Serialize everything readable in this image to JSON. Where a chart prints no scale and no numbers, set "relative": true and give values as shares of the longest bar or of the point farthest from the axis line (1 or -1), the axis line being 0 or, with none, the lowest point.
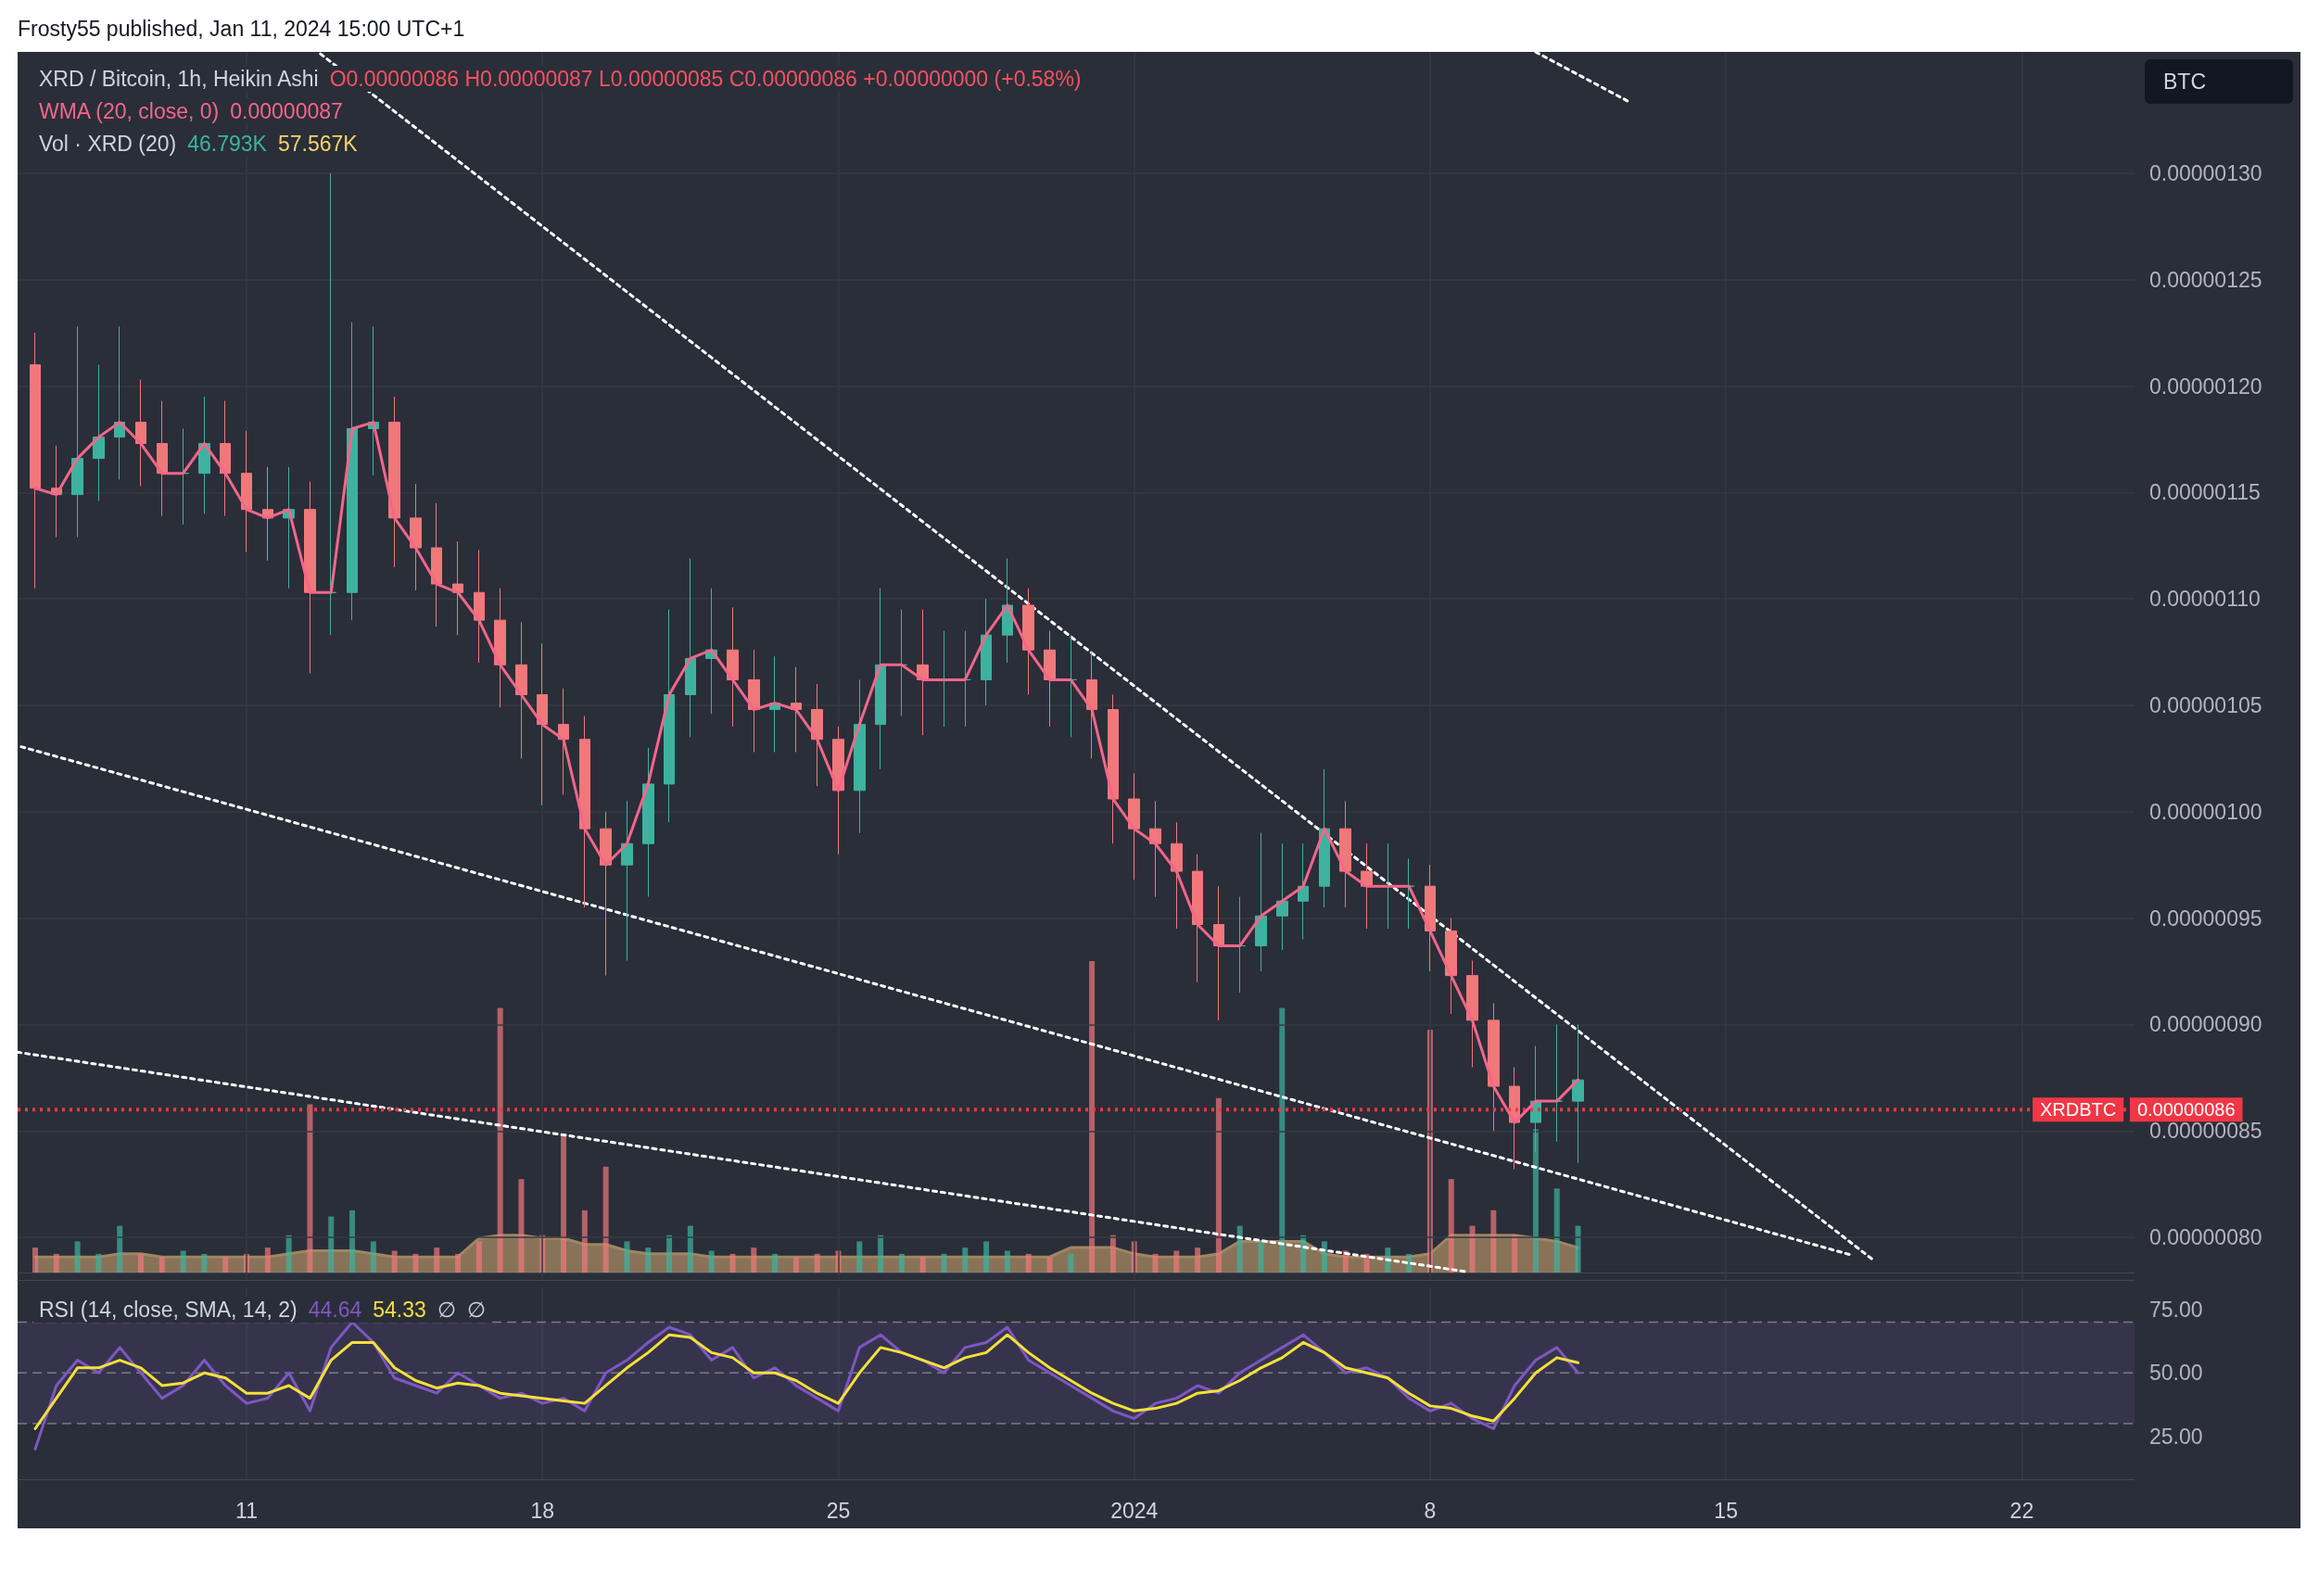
{
  "chart_data": [
    {
      "type": "candlestick",
      "title": "XRD / Bitcoin, 1h, Heikin Ashi",
      "ylabel": "BTC",
      "annotations": [
        "O0.00000086 H0.00000087 L0.00000085 C0.00000086 +0.00000000 (+0.58%)",
        "0.00000087",
        "Frosty55 published, Jan 11, 2024 15:00 UTC+1",
        "0.00000086"
      ],
      "x": [
        "2023-12-06T00:00",
        "2023-12-06T12:00",
        "2023-12-07T00:00",
        "2023-12-07T12:00",
        "2023-12-08T00:00",
        "2023-12-08T12:00",
        "2023-12-09T00:00",
        "2023-12-09T12:00",
        "2023-12-10T00:00",
        "2023-12-10T12:00",
        "2023-12-11T00:00",
        "2023-12-11T12:00",
        "2023-12-12T00:00",
        "2023-12-12T12:00",
        "2023-12-13T00:00",
        "2023-12-13T12:00",
        "2023-12-14T00:00",
        "2023-12-14T12:00",
        "2023-12-15T00:00",
        "2023-12-15T12:00",
        "2023-12-16T00:00",
        "2023-12-16T12:00",
        "2023-12-17T00:00",
        "2023-12-17T12:00",
        "2023-12-18T00:00",
        "2023-12-18T12:00",
        "2023-12-19T00:00",
        "2023-12-19T12:00",
        "2023-12-20T00:00",
        "2023-12-20T12:00",
        "2023-12-21T00:00",
        "2023-12-21T12:00",
        "2023-12-22T00:00",
        "2023-12-22T12:00",
        "2023-12-23T00:00",
        "2023-12-23T12:00",
        "2023-12-24T00:00",
        "2023-12-24T12:00",
        "2023-12-25T00:00",
        "2023-12-25T12:00",
        "2023-12-26T00:00",
        "2023-12-26T12:00",
        "2023-12-27T00:00",
        "2023-12-27T12:00",
        "2023-12-28T00:00",
        "2023-12-28T12:00",
        "2023-12-29T00:00",
        "2023-12-29T12:00",
        "2023-12-30T00:00",
        "2023-12-30T12:00",
        "2023-12-31T00:00",
        "2023-12-31T12:00",
        "2024-01-01T00:00",
        "2024-01-01T12:00",
        "2024-01-02T00:00",
        "2024-01-02T12:00",
        "2024-01-03T00:00",
        "2024-01-03T12:00",
        "2024-01-04T00:00",
        "2024-01-04T12:00",
        "2024-01-05T00:00",
        "2024-01-05T12:00",
        "2024-01-06T00:00",
        "2024-01-06T12:00",
        "2024-01-07T00:00",
        "2024-01-07T12:00",
        "2024-01-08T00:00",
        "2024-01-08T12:00",
        "2024-01-09T00:00",
        "2024-01-09T12:00",
        "2024-01-10T00:00",
        "2024-01-10T12:00",
        "2024-01-11T00:00",
        "2024-01-11T12:00"
      ],
      "ohlc": [
        [
          1.21e-06,
          1.225e-06,
          1.105e-06,
          1.152e-06
        ],
        [
          1.152e-06,
          1.172e-06,
          1.129e-06,
          1.149e-06
        ],
        [
          1.149e-06,
          1.228e-06,
          1.129e-06,
          1.166e-06
        ],
        [
          1.166e-06,
          1.21e-06,
          1.146e-06,
          1.176e-06
        ],
        [
          1.176e-06,
          1.228e-06,
          1.156e-06,
          1.183e-06
        ],
        [
          1.183e-06,
          1.203e-06,
          1.153e-06,
          1.173e-06
        ],
        [
          1.173e-06,
          1.193e-06,
          1.139e-06,
          1.159e-06
        ],
        [
          1.159e-06,
          1.18e-06,
          1.135e-06,
          1.159e-06
        ],
        [
          1.159e-06,
          1.195e-06,
          1.14e-06,
          1.173e-06
        ],
        [
          1.173e-06,
          1.193e-06,
          1.139e-06,
          1.159e-06
        ],
        [
          1.159e-06,
          1.179e-06,
          1.122e-06,
          1.142e-06
        ],
        [
          1.142e-06,
          1.162e-06,
          1.118e-06,
          1.138e-06
        ],
        [
          1.138e-06,
          1.162e-06,
          1.105e-06,
          1.142e-06
        ],
        [
          1.142e-06,
          1.155e-06,
          1.065e-06,
          1.103e-06
        ],
        [
          1.103e-06,
          1.3e-06,
          1.083e-06,
          1.103e-06
        ],
        [
          1.103e-06,
          1.23e-06,
          1.09e-06,
          1.18e-06
        ],
        [
          1.18e-06,
          1.228e-06,
          1.158e-06,
          1.183e-06
        ],
        [
          1.183e-06,
          1.195e-06,
          1.115e-06,
          1.138e-06
        ],
        [
          1.138e-06,
          1.154e-06,
          1.104e-06,
          1.124e-06
        ],
        [
          1.124e-06,
          1.145e-06,
          1.087e-06,
          1.107e-06
        ],
        [
          1.107e-06,
          1.127e-06,
          1.083e-06,
          1.103e-06
        ],
        [
          1.103e-06,
          1.123e-06,
          1.07e-06,
          1.09e-06
        ],
        [
          1.09e-06,
          1.105e-06,
          1.049e-06,
          1.069e-06
        ],
        [
          1.069e-06,
          1.089e-06,
          1.025e-06,
          1.055e-06
        ],
        [
          1.055e-06,
          1.079e-06,
          1.003e-06,
          1.041e-06
        ],
        [
          1.041e-06,
          1.058e-06,
          1.008e-06,
          1.034e-06
        ],
        [
          1.034e-06,
          1.045e-06,
          9.55e-07,
          9.92e-07
        ],
        [
          9.92e-07,
          1e-06,
          9.23e-07,
          9.75e-07
        ],
        [
          9.75e-07,
          1.005e-06,
          9.3e-07,
          9.85e-07
        ],
        [
          9.85e-07,
          1.03e-06,
          9.6e-07,
          1.013e-06
        ],
        [
          1.013e-06,
          1.095e-06,
          9.95e-07,
          1.055e-06
        ],
        [
          1.055e-06,
          1.119e-06,
          1.035e-06,
          1.072e-06
        ],
        [
          1.072e-06,
          1.105e-06,
          1.046e-06,
          1.076e-06
        ],
        [
          1.076e-06,
          1.096e-06,
          1.04e-06,
          1.062e-06
        ],
        [
          1.062e-06,
          1.076e-06,
          1.028e-06,
          1.048e-06
        ],
        [
          1.048e-06,
          1.073e-06,
          1.028e-06,
          1.051e-06
        ],
        [
          1.051e-06,
          1.068e-06,
          1.028e-06,
          1.048e-06
        ],
        [
          1.048e-06,
          1.06e-06,
          1.012e-06,
          1.034e-06
        ],
        [
          1.034e-06,
          1.04e-06,
          9.8e-07,
          1.01e-06
        ],
        [
          1.01e-06,
          1.062e-06,
          9.9e-07,
          1.041e-06
        ],
        [
          1.041e-06,
          1.105e-06,
          1.02e-06,
          1.069e-06
        ],
        [
          1.069e-06,
          1.095e-06,
          1.045e-06,
          1.069e-06
        ],
        [
          1.069e-06,
          1.095e-06,
          1.036e-06,
          1.062e-06
        ],
        [
          1.062e-06,
          1.085e-06,
          1.04e-06,
          1.062e-06
        ],
        [
          1.062e-06,
          1.085e-06,
          1.04e-06,
          1.062e-06
        ],
        [
          1.062e-06,
          1.1e-06,
          1.05e-06,
          1.083e-06
        ],
        [
          1.083e-06,
          1.119e-06,
          1.07e-06,
          1.097e-06
        ],
        [
          1.097e-06,
          1.105e-06,
          1.055e-06,
          1.076e-06
        ],
        [
          1.076e-06,
          1.085e-06,
          1.04e-06,
          1.062e-06
        ],
        [
          1.062e-06,
          1.083e-06,
          1.035e-06,
          1.062e-06
        ],
        [
          1.062e-06,
          1.075e-06,
          1.025e-06,
          1.048e-06
        ],
        [
          1.048e-06,
          1.055e-06,
          9.85e-07,
          1.006e-06
        ],
        [
          1.006e-06,
          1.018e-06,
          9.68e-07,
          9.92e-07
        ],
        [
          9.92e-07,
          1.005e-06,
          9.6e-07,
          9.85e-07
        ],
        [
          9.85e-07,
          9.95e-07,
          9.45e-07,
          9.72e-07
        ],
        [
          9.72e-07,
          9.8e-07,
          9.2e-07,
          9.47e-07
        ],
        [
          9.47e-07,
          9.65e-07,
          9.02e-07,
          9.37e-07
        ],
        [
          9.37e-07,
          9.6e-07,
          9.15e-07,
          9.37e-07
        ],
        [
          9.37e-07,
          9.9e-07,
          9.25e-07,
          9.51e-07
        ],
        [
          9.51e-07,
          9.85e-07,
          9.35e-07,
          9.58e-07
        ],
        [
          9.58e-07,
          9.85e-07,
          9.4e-07,
          9.65e-07
        ],
        [
          9.65e-07,
          1.02e-06,
          9.55e-07,
          9.92e-07
        ],
        [
          9.92e-07,
          1.005e-06,
          9.55e-07,
          9.72e-07
        ],
        [
          9.72e-07,
          9.85e-07,
          9.45e-07,
          9.65e-07
        ],
        [
          9.65e-07,
          9.85e-07,
          9.45e-07,
          9.65e-07
        ],
        [
          9.65e-07,
          9.78e-07,
          9.45e-07,
          9.65e-07
        ],
        [
          9.65e-07,
          9.75e-07,
          9.25e-07,
          9.44e-07
        ],
        [
          9.44e-07,
          9.5e-07,
          9.05e-07,
          9.23e-07
        ],
        [
          9.23e-07,
          9.3e-07,
          8.8e-07,
          9.02e-07
        ],
        [
          9.02e-07,
          9.1e-07,
          8.5e-07,
          8.71e-07
        ],
        [
          8.71e-07,
          8.8e-07,
          8.32e-07,
          8.54e-07
        ],
        [
          8.54e-07,
          8.9e-07,
          8.4e-07,
          8.64e-07
        ],
        [
          8.64e-07,
          9e-07,
          8.45e-07,
          8.64e-07
        ],
        [
          8.64e-07,
          9e-07,
          8.35e-07,
          8.74e-07
        ]
      ],
      "colors": [
        "#f1787a",
        "#f1787a",
        "#3db39f",
        "#3db39f",
        "#3db39f",
        "#f1787a",
        "#f1787a",
        "#3db39f",
        "#3db39f",
        "#f1787a",
        "#f1787a",
        "#f1787a",
        "#3db39f",
        "#f1787a",
        "#3db39f",
        "#3db39f",
        "#3db39f",
        "#f1787a",
        "#f1787a",
        "#f1787a",
        "#f1787a",
        "#f1787a",
        "#f1787a",
        "#f1787a",
        "#f1787a",
        "#f1787a",
        "#f1787a",
        "#f1787a",
        "#3db39f",
        "#3db39f",
        "#3db39f",
        "#3db39f",
        "#3db39f",
        "#f1787a",
        "#f1787a",
        "#3db39f",
        "#f1787a",
        "#f1787a",
        "#f1787a",
        "#3db39f",
        "#3db39f",
        "#3db39f",
        "#f1787a",
        "#3db39f",
        "#3db39f",
        "#3db39f",
        "#3db39f",
        "#f1787a",
        "#f1787a",
        "#3db39f",
        "#f1787a",
        "#f1787a",
        "#f1787a",
        "#f1787a",
        "#f1787a",
        "#f1787a",
        "#f1787a",
        "#3db39f",
        "#3db39f",
        "#3db39f",
        "#3db39f",
        "#3db39f",
        "#f1787a",
        "#f1787a",
        "#3db39f",
        "#3db39f",
        "#f1787a",
        "#f1787a",
        "#f1787a",
        "#f1787a",
        "#f1787a",
        "#3db39f",
        "#3db39f",
        "#3db39f"
      ],
      "series": [
        {
          "name": "WMA (20, close, 0)",
          "type": "line",
          "color": "#f7668a",
          "values": [
            1.152e-06,
            1.149e-06,
            1.166e-06,
            1.176e-06,
            1.183e-06,
            1.173e-06,
            1.159e-06,
            1.159e-06,
            1.173e-06,
            1.159e-06,
            1.142e-06,
            1.138e-06,
            1.142e-06,
            1.103e-06,
            1.103e-06,
            1.18e-06,
            1.183e-06,
            1.138e-06,
            1.124e-06,
            1.107e-06,
            1.103e-06,
            1.09e-06,
            1.069e-06,
            1.055e-06,
            1.041e-06,
            1.034e-06,
            9.92e-07,
            9.75e-07,
            9.85e-07,
            1.013e-06,
            1.055e-06,
            1.072e-06,
            1.076e-06,
            1.062e-06,
            1.048e-06,
            1.051e-06,
            1.048e-06,
            1.034e-06,
            1.01e-06,
            1.041e-06,
            1.069e-06,
            1.069e-06,
            1.062e-06,
            1.062e-06,
            1.062e-06,
            1.083e-06,
            1.097e-06,
            1.076e-06,
            1.062e-06,
            1.062e-06,
            1.048e-06,
            1.006e-06,
            9.92e-07,
            9.85e-07,
            9.72e-07,
            9.47e-07,
            9.37e-07,
            9.37e-07,
            9.51e-07,
            9.58e-07,
            9.65e-07,
            9.92e-07,
            9.72e-07,
            9.65e-07,
            9.65e-07,
            9.65e-07,
            9.44e-07,
            9.23e-07,
            9.02e-07,
            8.71e-07,
            8.54e-07,
            8.64e-07,
            8.64e-07,
            8.74e-07
          ]
        },
        {
          "type": "line",
          "color": "#ffffff",
          "line_style": "dotted",
          "x": [
            "2023-12-12T16:30",
            "2024-01-18T10:40"
          ],
          "values": [
            1.357e-06,
            7.9e-07
          ]
        },
        {
          "type": "line",
          "color": "#ffffff",
          "line_style": "dotted",
          "x": [
            "2024-01-10T11:50",
            "2024-01-12T16:00"
          ],
          "values": [
            1.357e-06,
            1.334e-06
          ]
        },
        {
          "type": "line",
          "color": "#ffffff",
          "line_style": "dotted",
          "x": [
            "2023-12-05T14:00",
            "2024-01-17T22:00"
          ],
          "values": [
            1.031e-06,
            7.92e-07
          ]
        },
        {
          "type": "line",
          "color": "#ffffff",
          "line_style": "dotted",
          "x": [
            "2023-12-05T14:00",
            "2024-01-08T19:30"
          ],
          "values": [
            8.87e-07,
            7.84e-07
          ]
        }
      ],
      "xlim": [
        "2023-12-05T14:00",
        "2024-01-24T16:00"
      ],
      "xticks": [
        {
          "value": "2023-12-11",
          "label": null
        },
        {
          "value": "2023-12-18",
          "label": null
        },
        {
          "value": "2023-12-25",
          "label": null
        },
        {
          "value": "2024-01-01",
          "label": null
        },
        {
          "value": "2024-01-08",
          "label": null
        },
        {
          "value": "2024-01-15",
          "label": null
        },
        {
          "value": "2024-01-22",
          "label": null
        }
      ],
      "ylim": [
        7.8e-07,
        1.357e-06
      ],
      "yticks": [
        {
          "value": 8e-07,
          "label": "0.00000080"
        },
        {
          "value": 8.5e-07,
          "label": "0.00000085"
        },
        {
          "value": 9e-07,
          "label": "0.00000090"
        },
        {
          "value": 9.5e-07,
          "label": "0.00000095"
        },
        {
          "value": 1e-06,
          "label": "0.00000100"
        },
        {
          "value": 1.05e-06,
          "label": "0.00000105"
        },
        {
          "value": 1.1e-06,
          "label": "0.00000110"
        },
        {
          "value": 1.15e-06,
          "label": "0.00000115"
        },
        {
          "value": 1.2e-06,
          "label": "0.00000120"
        },
        {
          "value": 1.25e-06,
          "label": "0.00000125"
        },
        {
          "value": 1.3e-06,
          "label": "0.00000130"
        }
      ],
      "ref_lines": [
        {
          "axis": "y",
          "value": 8.6e-07,
          "label": "XRDBTC",
          "color": "#f23645",
          "line_style": "dotted"
        }
      ],
      "grid": true,
      "tick_labels": "y",
      "marker": "none"
    },
    {
      "type": "bar",
      "title": "Vol · XRD (20)",
      "annotations": [
        "46.793K",
        "57.567K"
      ],
      "relative": true,
      "tick_labels": false,
      "x": [
        "2023-12-06T00:00",
        "2023-12-06T12:00",
        "2023-12-07T00:00",
        "2023-12-07T12:00",
        "2023-12-08T00:00",
        "2023-12-08T12:00",
        "2023-12-09T00:00",
        "2023-12-09T12:00",
        "2023-12-10T00:00",
        "2023-12-10T12:00",
        "2023-12-11T00:00",
        "2023-12-11T12:00",
        "2023-12-12T00:00",
        "2023-12-12T12:00",
        "2023-12-13T00:00",
        "2023-12-13T12:00",
        "2023-12-14T00:00",
        "2023-12-14T12:00",
        "2023-12-15T00:00",
        "2023-12-15T12:00",
        "2023-12-16T00:00",
        "2023-12-16T12:00",
        "2023-12-17T00:00",
        "2023-12-17T12:00",
        "2023-12-18T00:00",
        "2023-12-18T12:00",
        "2023-12-19T00:00",
        "2023-12-19T12:00",
        "2023-12-20T00:00",
        "2023-12-20T12:00",
        "2023-12-21T00:00",
        "2023-12-21T12:00",
        "2023-12-22T00:00",
        "2023-12-22T12:00",
        "2023-12-23T00:00",
        "2023-12-23T12:00",
        "2023-12-24T00:00",
        "2023-12-24T12:00",
        "2023-12-25T00:00",
        "2023-12-25T12:00",
        "2023-12-26T00:00",
        "2023-12-26T12:00",
        "2023-12-27T00:00",
        "2023-12-27T12:00",
        "2023-12-28T00:00",
        "2023-12-28T12:00",
        "2023-12-29T00:00",
        "2023-12-29T12:00",
        "2023-12-30T00:00",
        "2023-12-30T12:00",
        "2023-12-31T00:00",
        "2023-12-31T12:00",
        "2024-01-01T00:00",
        "2024-01-01T12:00",
        "2024-01-02T00:00",
        "2024-01-02T12:00",
        "2024-01-03T00:00",
        "2024-01-03T12:00",
        "2024-01-04T00:00",
        "2024-01-04T12:00",
        "2024-01-05T00:00",
        "2024-01-05T12:00",
        "2024-01-06T00:00",
        "2024-01-06T12:00",
        "2024-01-07T00:00",
        "2024-01-07T12:00",
        "2024-01-08T00:00",
        "2024-01-08T12:00",
        "2024-01-09T00:00",
        "2024-01-09T12:00",
        "2024-01-10T00:00",
        "2024-01-10T12:00",
        "2024-01-11T00:00",
        "2024-01-11T12:00"
      ],
      "series": [
        {
          "type": "bar",
          "values": [
            0.08,
            0.06,
            0.1,
            0.06,
            0.15,
            0.06,
            0.05,
            0.07,
            0.06,
            0.05,
            0.06,
            0.08,
            0.12,
            0.54,
            0.18,
            0.2,
            0.1,
            0.07,
            0.06,
            0.08,
            0.06,
            0.1,
            0.85,
            0.3,
            0.12,
            0.44,
            0.2,
            0.34,
            0.1,
            0.08,
            0.12,
            0.15,
            0.07,
            0.06,
            0.08,
            0.06,
            0.05,
            0.06,
            0.07,
            0.1,
            0.12,
            0.06,
            0.05,
            0.06,
            0.08,
            0.1,
            0.07,
            0.06,
            0.05,
            0.06,
            1,
            0.12,
            0.1,
            0.06,
            0.07,
            0.08,
            0.56,
            0.15,
            0.1,
            0.85,
            0.12,
            0.1,
            0.07,
            0.06,
            0.08,
            0.06,
            0.78,
            0.3,
            0.15,
            0.2,
            0.12,
            0.46,
            0.27,
            0.15
          ],
          "colors": [
            "#f1787a",
            "#f1787a",
            "#3db39f",
            "#3db39f",
            "#3db39f",
            "#f1787a",
            "#f1787a",
            "#3db39f",
            "#3db39f",
            "#f1787a",
            "#f1787a",
            "#f1787a",
            "#3db39f",
            "#f1787a",
            "#3db39f",
            "#3db39f",
            "#3db39f",
            "#f1787a",
            "#f1787a",
            "#f1787a",
            "#f1787a",
            "#f1787a",
            "#f1787a",
            "#f1787a",
            "#f1787a",
            "#f1787a",
            "#f1787a",
            "#f1787a",
            "#3db39f",
            "#3db39f",
            "#3db39f",
            "#3db39f",
            "#3db39f",
            "#f1787a",
            "#f1787a",
            "#3db39f",
            "#f1787a",
            "#f1787a",
            "#f1787a",
            "#3db39f",
            "#3db39f",
            "#3db39f",
            "#f1787a",
            "#3db39f",
            "#3db39f",
            "#3db39f",
            "#3db39f",
            "#f1787a",
            "#f1787a",
            "#3db39f",
            "#f1787a",
            "#f1787a",
            "#f1787a",
            "#f1787a",
            "#f1787a",
            "#f1787a",
            "#f1787a",
            "#3db39f",
            "#3db39f",
            "#3db39f",
            "#3db39f",
            "#3db39f",
            "#f1787a",
            "#f1787a",
            "#3db39f",
            "#3db39f",
            "#f1787a",
            "#f1787a",
            "#f1787a",
            "#f1787a",
            "#f1787a",
            "#3db39f",
            "#3db39f",
            "#3db39f"
          ]
        },
        {
          "type": "area",
          "color": "#a08562",
          "values": [
            0.05,
            0.05,
            0.05,
            0.05,
            0.06,
            0.06,
            0.05,
            0.05,
            0.05,
            0.05,
            0.05,
            0.05,
            0.06,
            0.07,
            0.07,
            0.07,
            0.06,
            0.05,
            0.05,
            0.05,
            0.05,
            0.11,
            0.12,
            0.12,
            0.11,
            0.11,
            0.09,
            0.09,
            0.07,
            0.06,
            0.06,
            0.06,
            0.05,
            0.05,
            0.05,
            0.05,
            0.05,
            0.05,
            0.05,
            0.05,
            0.05,
            0.05,
            0.05,
            0.05,
            0.05,
            0.05,
            0.05,
            0.05,
            0.05,
            0.08,
            0.08,
            0.08,
            0.06,
            0.05,
            0.05,
            0.05,
            0.06,
            0.1,
            0.1,
            0.1,
            0.1,
            0.06,
            0.05,
            0.05,
            0.05,
            0.05,
            0.06,
            0.12,
            0.12,
            0.12,
            0.12,
            0.11,
            0.1,
            0.08
          ]
        }
      ],
      "xlim": [
        "2023-12-05T14:00",
        "2024-01-24T16:00"
      ]
    },
    {
      "type": "line",
      "title": "RSI (14, close, SMA, 14, 2)",
      "annotations": [
        "44.64",
        "54.33",
        "∅",
        "∅"
      ],
      "x": [
        "2023-12-06T00:00",
        "2023-12-06T12:00",
        "2023-12-07T00:00",
        "2023-12-07T12:00",
        "2023-12-08T00:00",
        "2023-12-08T12:00",
        "2023-12-09T00:00",
        "2023-12-09T12:00",
        "2023-12-10T00:00",
        "2023-12-10T12:00",
        "2023-12-11T00:00",
        "2023-12-11T12:00",
        "2023-12-12T00:00",
        "2023-12-12T12:00",
        "2023-12-13T00:00",
        "2023-12-13T12:00",
        "2023-12-14T00:00",
        "2023-12-14T12:00",
        "2023-12-15T00:00",
        "2023-12-15T12:00",
        "2023-12-16T00:00",
        "2023-12-16T12:00",
        "2023-12-17T00:00",
        "2023-12-17T12:00",
        "2023-12-18T00:00",
        "2023-12-18T12:00",
        "2023-12-19T00:00",
        "2023-12-19T12:00",
        "2023-12-20T00:00",
        "2023-12-20T12:00",
        "2023-12-21T00:00",
        "2023-12-21T12:00",
        "2023-12-22T00:00",
        "2023-12-22T12:00",
        "2023-12-23T00:00",
        "2023-12-23T12:00",
        "2023-12-24T00:00",
        "2023-12-24T12:00",
        "2023-12-25T00:00",
        "2023-12-25T12:00",
        "2023-12-26T00:00",
        "2023-12-26T12:00",
        "2023-12-27T00:00",
        "2023-12-27T12:00",
        "2023-12-28T00:00",
        "2023-12-28T12:00",
        "2023-12-29T00:00",
        "2023-12-29T12:00",
        "2023-12-30T00:00",
        "2023-12-30T12:00",
        "2023-12-31T00:00",
        "2023-12-31T12:00",
        "2024-01-01T00:00",
        "2024-01-01T12:00",
        "2024-01-02T00:00",
        "2024-01-02T12:00",
        "2024-01-03T00:00",
        "2024-01-03T12:00",
        "2024-01-04T00:00",
        "2024-01-04T12:00",
        "2024-01-05T00:00",
        "2024-01-05T12:00",
        "2024-01-06T00:00",
        "2024-01-06T12:00",
        "2024-01-07T00:00",
        "2024-01-07T12:00",
        "2024-01-08T00:00",
        "2024-01-08T12:00",
        "2024-01-09T00:00",
        "2024-01-09T12:00",
        "2024-01-10T00:00",
        "2024-01-10T12:00",
        "2024-01-11T00:00",
        "2024-01-11T12:00"
      ],
      "series": [
        {
          "color": "#7e57c2",
          "values": [
            20,
            45,
            55,
            50,
            60,
            50,
            40,
            45,
            55,
            45,
            38,
            40,
            50,
            35,
            60,
            70,
            62,
            48,
            45,
            42,
            50,
            45,
            40,
            42,
            38,
            40,
            35,
            50,
            55,
            62,
            68,
            65,
            55,
            60,
            48,
            52,
            45,
            40,
            35,
            60,
            65,
            58,
            55,
            50,
            60,
            62,
            68,
            55,
            50,
            45,
            40,
            35,
            32,
            38,
            40,
            45,
            42,
            50,
            55,
            60,
            65,
            58,
            50,
            52,
            48,
            40,
            35,
            38,
            32,
            28,
            45,
            55,
            60,
            50
          ]
        },
        {
          "color": "#f5e03a",
          "values": [
            28,
            40,
            52,
            52,
            55,
            52,
            45,
            46,
            50,
            48,
            42,
            42,
            45,
            40,
            55,
            62,
            62,
            52,
            47,
            44,
            46,
            45,
            42,
            41,
            40,
            39,
            38,
            45,
            52,
            58,
            65,
            64,
            58,
            56,
            50,
            50,
            47,
            42,
            38,
            50,
            60,
            58,
            55,
            52,
            56,
            58,
            65,
            58,
            52,
            47,
            42,
            38,
            35,
            36,
            38,
            42,
            43,
            47,
            52,
            56,
            62,
            58,
            52,
            50,
            48,
            42,
            37,
            36,
            33,
            31,
            40,
            50,
            56,
            54
          ]
        }
      ],
      "xlim": [
        "2023-12-05T14:00",
        "2024-01-24T16:00"
      ],
      "xticks": [
        {
          "value": "2023-12-11",
          "label": "11"
        },
        {
          "value": "2023-12-18",
          "label": "18"
        },
        {
          "value": "2023-12-25",
          "label": "25"
        },
        {
          "value": "2024-01-01",
          "label": "2024"
        },
        {
          "value": "2024-01-08",
          "label": "8"
        },
        {
          "value": "2024-01-15",
          "label": "15"
        },
        {
          "value": "2024-01-22",
          "label": "22"
        }
      ],
      "ylim": [
        8.1,
        83.7
      ],
      "yticks": [
        {
          "value": 25,
          "label": "25.00"
        },
        {
          "value": 50,
          "label": "50.00"
        },
        {
          "value": 75,
          "label": "75.00"
        }
      ],
      "bands": [
        {
          "axis": "y",
          "from": 30,
          "to": 70,
          "color": "#7e57c2"
        }
      ],
      "ref_lines": [
        {
          "axis": "y",
          "value": 70,
          "color": "#787b86",
          "line_style": "dashed"
        },
        {
          "axis": "y",
          "value": 50,
          "color": "#787b86",
          "line_style": "dashed"
        },
        {
          "axis": "y",
          "value": 30,
          "color": "#787b86",
          "line_style": "dashed"
        }
      ],
      "grid": "x",
      "marker": "none"
    }
  ]
}
